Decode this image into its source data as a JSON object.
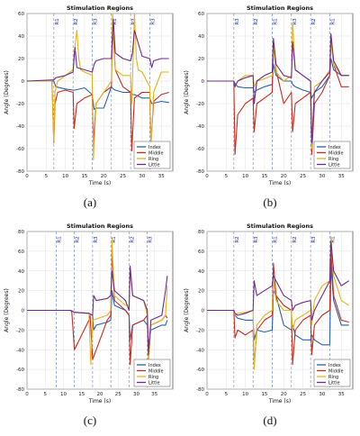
{
  "chart_data": [
    {
      "type": "line",
      "caption": "(a)",
      "title": "Stimulation Regions",
      "xlabel": "Time (s)",
      "ylabel": "Angle (Degrees)",
      "xlim": [
        0,
        38
      ],
      "ylim": [
        -80,
        60
      ],
      "xticks": [
        0,
        5,
        10,
        15,
        20,
        25,
        30,
        35
      ],
      "yticks": [
        -80,
        -60,
        -40,
        -20,
        0,
        20,
        40,
        60
      ],
      "regions": [
        {
          "label": "R1",
          "x": 7
        },
        {
          "label": "R2",
          "x": 12
        },
        {
          "label": "R3",
          "x": 17
        },
        {
          "label": "R1",
          "x": 22
        },
        {
          "label": "R2",
          "x": 27
        },
        {
          "label": "R3",
          "x": 32
        }
      ],
      "legend_position": "bottom-right",
      "series": [
        {
          "name": "Index",
          "color": "#2a5fa8",
          "x": [
            0,
            7,
            7.5,
            10,
            12,
            12.5,
            15,
            17,
            17.5,
            18,
            20,
            22,
            22.5,
            23,
            25,
            27,
            27.5,
            28,
            30,
            32,
            32.5,
            35,
            37
          ],
          "y": [
            0,
            0,
            -5,
            -7,
            -8,
            -8,
            -6,
            -12,
            -25,
            -24,
            -24,
            -5,
            -7,
            -8,
            -10,
            -10,
            -12,
            -12,
            -15,
            -15,
            -20,
            -18,
            -19
          ]
        },
        {
          "name": "Middle",
          "color": "#cc2a1e",
          "x": [
            0,
            6.5,
            7,
            7.3,
            8,
            10,
            12,
            12.3,
            13,
            15,
            17,
            17.3,
            18,
            20,
            22,
            22.3,
            23,
            25,
            27,
            27.3,
            28,
            30,
            32,
            32.3,
            33,
            35,
            37
          ],
          "y": [
            0,
            0,
            -55,
            -20,
            -10,
            -8,
            -10,
            -42,
            -20,
            -15,
            -12,
            -55,
            -20,
            -10,
            -5,
            50,
            10,
            -5,
            -10,
            -62,
            -15,
            -10,
            -10,
            -55,
            -18,
            -12,
            -10
          ]
        },
        {
          "name": "Ring",
          "color": "#e7b21a",
          "x": [
            0,
            6.5,
            7,
            7.3,
            8,
            10,
            12,
            12.3,
            13,
            13.5,
            14,
            15,
            17,
            17.3,
            18,
            20,
            22,
            22.3,
            23,
            25,
            27,
            27.3,
            28,
            28.5,
            29,
            30,
            32,
            32.3,
            33,
            35,
            37
          ],
          "y": [
            0,
            0,
            -55,
            -10,
            0,
            5,
            10,
            25,
            45,
            20,
            10,
            8,
            5,
            -70,
            -20,
            -10,
            0,
            60,
            10,
            5,
            5,
            -20,
            60,
            20,
            10,
            8,
            -5,
            -60,
            -10,
            8,
            8
          ]
        },
        {
          "name": "Little",
          "color": "#6e2a8e",
          "x": [
            0,
            7,
            7.5,
            10,
            12,
            12.5,
            13,
            15,
            17,
            17.5,
            18,
            20,
            22,
            22.5,
            23,
            25,
            27,
            27.5,
            28,
            30,
            32,
            32.5,
            33,
            35,
            37
          ],
          "y": [
            0,
            1,
            3,
            5,
            8,
            30,
            12,
            10,
            8,
            15,
            18,
            20,
            20,
            55,
            25,
            20,
            18,
            25,
            45,
            22,
            20,
            12,
            18,
            20,
            20
          ]
        }
      ]
    },
    {
      "type": "line",
      "caption": "(b)",
      "title": "Stimulation Regions",
      "xlabel": "Time (s)",
      "ylabel": "Angle (Degrees)",
      "xlim": [
        0,
        38
      ],
      "ylim": [
        -80,
        60
      ],
      "xticks": [
        0,
        5,
        10,
        15,
        20,
        25,
        30,
        35
      ],
      "yticks": [
        -80,
        -60,
        -40,
        -20,
        0,
        20,
        40,
        60
      ],
      "regions": [
        {
          "label": "R3",
          "x": 7
        },
        {
          "label": "R2",
          "x": 12
        },
        {
          "label": "R1",
          "x": 17
        },
        {
          "label": "R3",
          "x": 22
        },
        {
          "label": "R2",
          "x": 27
        },
        {
          "label": "R1",
          "x": 32
        }
      ],
      "legend_position": "bottom-right",
      "series": [
        {
          "name": "Index",
          "color": "#2a5fa8",
          "x": [
            0,
            7,
            7.3,
            8,
            10,
            12,
            12.3,
            13,
            15,
            17,
            17.3,
            18,
            20,
            22,
            22.3,
            23,
            25,
            27,
            27.3,
            28,
            30,
            32,
            32.3,
            33,
            35,
            37
          ],
          "y": [
            0,
            0,
            -2,
            -5,
            -6,
            -6,
            -10,
            -8,
            -5,
            -3,
            15,
            5,
            0,
            0,
            -3,
            -5,
            -8,
            -10,
            -15,
            -10,
            -5,
            5,
            20,
            10,
            5,
            5
          ]
        },
        {
          "name": "Middle",
          "color": "#cc2a1e",
          "x": [
            0,
            7,
            7.3,
            8,
            10,
            12,
            12.3,
            13,
            15,
            17,
            17.3,
            18,
            20,
            22,
            22.3,
            23,
            25,
            27,
            27.3,
            28,
            30,
            32,
            32.3,
            33,
            35,
            37
          ],
          "y": [
            0,
            0,
            -65,
            -30,
            -20,
            -15,
            -45,
            -20,
            -15,
            -10,
            35,
            10,
            -20,
            -10,
            -45,
            -20,
            -15,
            -10,
            -65,
            -20,
            -10,
            5,
            40,
            15,
            -5,
            -5
          ]
        },
        {
          "name": "Ring",
          "color": "#e7b21a",
          "x": [
            0,
            7,
            7.3,
            8,
            10,
            12,
            12.3,
            13,
            15,
            17,
            17.3,
            18,
            20,
            22,
            22.3,
            23,
            25,
            27,
            27.3,
            28,
            30,
            32,
            32.3,
            33,
            35,
            37
          ],
          "y": [
            0,
            0,
            -5,
            0,
            5,
            5,
            -5,
            0,
            2,
            5,
            30,
            8,
            0,
            5,
            52,
            10,
            5,
            0,
            -60,
            -5,
            0,
            10,
            35,
            15,
            5,
            5
          ]
        },
        {
          "name": "Little",
          "color": "#6e2a8e",
          "x": [
            0,
            7,
            7.3,
            8,
            10,
            12,
            12.3,
            13,
            15,
            17,
            17.3,
            18,
            20,
            22,
            22.3,
            23,
            25,
            27,
            27.3,
            28,
            30,
            32,
            32.3,
            33,
            35,
            37
          ],
          "y": [
            0,
            0,
            -5,
            0,
            3,
            5,
            -20,
            0,
            5,
            8,
            38,
            15,
            5,
            3,
            35,
            10,
            5,
            0,
            -55,
            -10,
            0,
            8,
            42,
            18,
            5,
            5
          ]
        }
      ]
    },
    {
      "type": "line",
      "caption": "(c)",
      "title": "Stimulation Regions",
      "xlabel": "Time (s)",
      "ylabel": "Angle (Degrees)",
      "xlim": [
        0,
        40
      ],
      "ylim": [
        -80,
        80
      ],
      "xticks": [
        0,
        5,
        10,
        15,
        20,
        25,
        30,
        35
      ],
      "yticks": [
        -80,
        -60,
        -40,
        -20,
        0,
        20,
        40,
        60,
        80
      ],
      "regions": [
        {
          "label": "R1",
          "x": 8
        },
        {
          "label": "R2",
          "x": 13
        },
        {
          "label": "R3",
          "x": 18
        },
        {
          "label": "R1",
          "x": 23
        },
        {
          "label": "R2",
          "x": 28
        },
        {
          "label": "R3",
          "x": 33
        }
      ],
      "legend_position": "bottom-right",
      "series": [
        {
          "name": "Index",
          "color": "#2a5fa8",
          "x": [
            0,
            8,
            12,
            13,
            17,
            18,
            18.3,
            19,
            22,
            23,
            23.3,
            24,
            27,
            28,
            28.3,
            29,
            32,
            33,
            33.3,
            34,
            37,
            38,
            38.5
          ],
          "y": [
            0,
            0,
            0,
            -2,
            -3,
            -5,
            -20,
            -15,
            -12,
            -10,
            20,
            5,
            0,
            -5,
            -30,
            -15,
            -10,
            -15,
            -35,
            -20,
            -15,
            -15,
            -10
          ]
        },
        {
          "name": "Middle",
          "color": "#cc2a1e",
          "x": [
            0,
            8,
            12,
            12.3,
            13,
            17,
            17.3,
            18,
            22,
            23,
            23.3,
            24,
            27,
            28,
            28.3,
            29,
            32,
            33,
            33.3,
            34,
            37,
            38,
            38.5
          ],
          "y": [
            0,
            0,
            0,
            -2,
            -40,
            -10,
            -5,
            -50,
            -10,
            -5,
            60,
            10,
            0,
            -5,
            -55,
            -15,
            -10,
            -5,
            -50,
            -15,
            -10,
            -5,
            -8
          ]
        },
        {
          "name": "Ring",
          "color": "#e7b21a",
          "x": [
            0,
            8,
            12,
            13,
            17,
            17.5,
            18,
            22,
            23,
            23.3,
            24,
            27,
            28,
            28.3,
            29,
            32,
            33,
            33.3,
            34,
            37,
            38,
            38.5
          ],
          "y": [
            0,
            0,
            0,
            -2,
            -3,
            -55,
            -10,
            -5,
            0,
            72,
            15,
            5,
            5,
            40,
            15,
            10,
            -5,
            -55,
            -15,
            -10,
            -5,
            25
          ]
        },
        {
          "name": "Little",
          "color": "#6e2a8e",
          "x": [
            0,
            8,
            12,
            13,
            17,
            18,
            18.3,
            19,
            22,
            23,
            23.3,
            24,
            27,
            28,
            28.3,
            29,
            32,
            33,
            33.3,
            34,
            37,
            38,
            38.5
          ],
          "y": [
            0,
            0,
            0,
            -2,
            -3,
            -5,
            15,
            10,
            12,
            15,
            40,
            20,
            10,
            0,
            45,
            15,
            10,
            0,
            -45,
            -10,
            -5,
            20,
            35
          ]
        }
      ]
    },
    {
      "type": "line",
      "caption": "(d)",
      "title": "Stimulation Regions",
      "xlabel": "Time (s)",
      "ylabel": "Angle (Degrees)",
      "xlim": [
        0,
        38
      ],
      "ylim": [
        -80,
        80
      ],
      "xticks": [
        0,
        5,
        10,
        15,
        20,
        25,
        30,
        35
      ],
      "yticks": [
        -80,
        -60,
        -40,
        -20,
        0,
        20,
        40,
        60,
        80
      ],
      "regions": [
        {
          "label": "R2",
          "x": 7
        },
        {
          "label": "R3",
          "x": 12
        },
        {
          "label": "R1",
          "x": 17
        },
        {
          "label": "R2",
          "x": 22
        },
        {
          "label": "R3",
          "x": 27
        },
        {
          "label": "R1",
          "x": 32
        }
      ],
      "legend_position": "bottom-right",
      "series": [
        {
          "name": "Index",
          "color": "#2a5fa8",
          "x": [
            0,
            7,
            7.3,
            8,
            10,
            12,
            12.3,
            13,
            15,
            17,
            17.3,
            18,
            20,
            22,
            22.3,
            23,
            25,
            27,
            27.3,
            28,
            30,
            32,
            32.3,
            33,
            35,
            37
          ],
          "y": [
            0,
            0,
            -5,
            -8,
            -10,
            -10,
            -30,
            -20,
            -22,
            -20,
            20,
            15,
            -15,
            -20,
            -15,
            -25,
            -30,
            -30,
            -25,
            -30,
            -35,
            -35,
            45,
            10,
            -15,
            -15
          ]
        },
        {
          "name": "Middle",
          "color": "#cc2a1e",
          "x": [
            0,
            7,
            7.3,
            8,
            10,
            12,
            12.3,
            13,
            15,
            17,
            17.3,
            18,
            20,
            22,
            22.3,
            23,
            25,
            27,
            27.3,
            28,
            30,
            32,
            32.3,
            33,
            35,
            37
          ],
          "y": [
            0,
            0,
            -28,
            -20,
            -25,
            -20,
            -55,
            -20,
            -10,
            -5,
            48,
            15,
            5,
            0,
            -55,
            -20,
            -10,
            -5,
            -45,
            -15,
            -5,
            0,
            60,
            15,
            -10,
            -12
          ]
        },
        {
          "name": "Ring",
          "color": "#e7b21a",
          "x": [
            0,
            7,
            7.3,
            8,
            10,
            12,
            12.3,
            13,
            15,
            17,
            17.3,
            18,
            20,
            22,
            22.3,
            23,
            25,
            27,
            27.3,
            28,
            30,
            32,
            32.3,
            33,
            35,
            37
          ],
          "y": [
            0,
            0,
            -5,
            -3,
            -2,
            0,
            -60,
            -15,
            -5,
            0,
            30,
            10,
            0,
            0,
            -20,
            -10,
            -5,
            0,
            -15,
            10,
            25,
            30,
            75,
            35,
            10,
            5
          ]
        },
        {
          "name": "Little",
          "color": "#6e2a8e",
          "x": [
            0,
            7,
            7.3,
            8,
            10,
            12,
            12.3,
            13,
            15,
            17,
            17.3,
            18,
            20,
            22,
            22.3,
            23,
            25,
            27,
            27.3,
            28,
            30,
            32,
            32.3,
            33,
            35,
            37
          ],
          "y": [
            0,
            0,
            -3,
            -5,
            -3,
            0,
            30,
            15,
            20,
            25,
            35,
            30,
            15,
            10,
            0,
            5,
            8,
            10,
            -10,
            0,
            15,
            30,
            70,
            40,
            25,
            30
          ]
        }
      ]
    }
  ]
}
